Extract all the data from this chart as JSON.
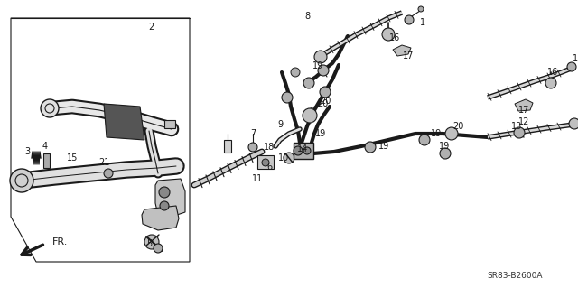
{
  "bg_color": "#ffffff",
  "line_color": "#1a1a1a",
  "fig_width": 6.4,
  "fig_height": 3.19,
  "dpi": 100,
  "diagram_code": "SR83-B2600A"
}
